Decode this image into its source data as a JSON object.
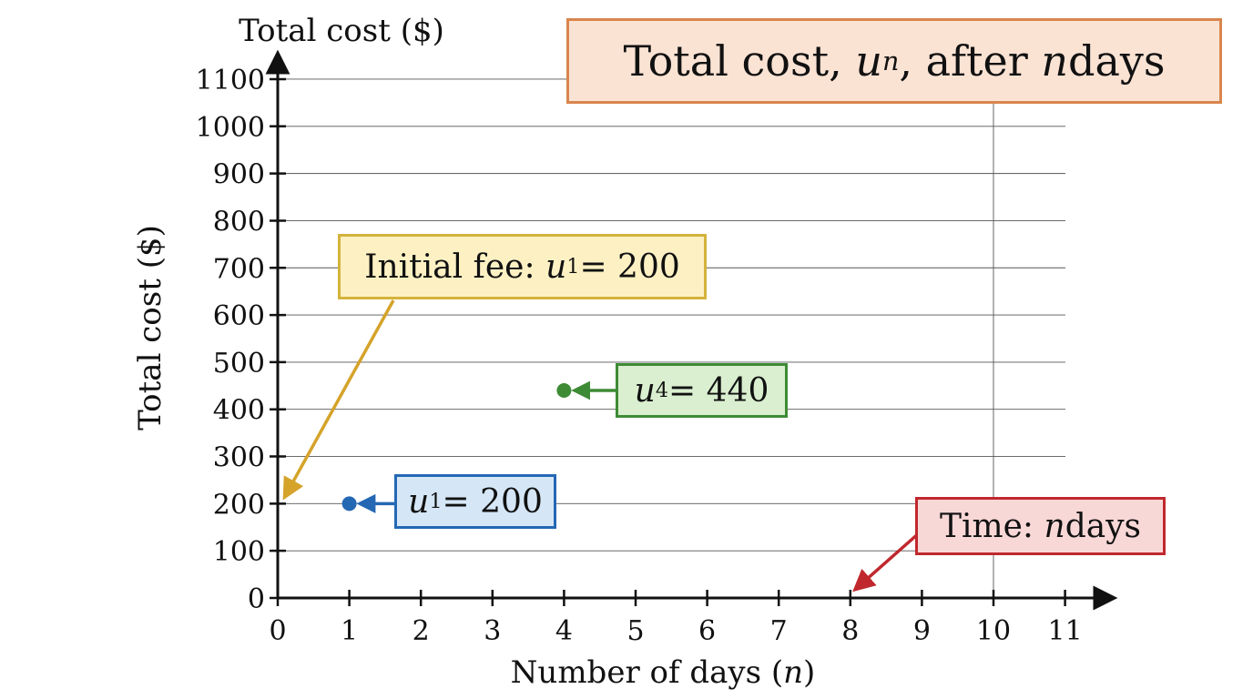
{
  "chart_data": {
    "type": "scatter",
    "title_prefix": "Total cost, ",
    "title_var": "u",
    "title_sub": "n",
    "title_mid": ", after ",
    "title_var2": "n",
    "title_suffix": " days",
    "ylabel": "Total cost ($)",
    "ylabel_top": "Total cost ($)",
    "xlabel_prefix": "Number of days (",
    "xlabel_var": "n",
    "xlabel_suffix": ")",
    "xlim": [
      0,
      11
    ],
    "ylim": [
      0,
      1100
    ],
    "x_ticks": [
      0,
      1,
      2,
      3,
      4,
      5,
      6,
      7,
      8,
      9,
      10,
      11
    ],
    "y_ticks": [
      0,
      100,
      200,
      300,
      400,
      500,
      600,
      700,
      800,
      900,
      1000,
      1100
    ],
    "grid": "horizontal",
    "points": [
      {
        "x": 1,
        "y": 200,
        "color": "#2468b4"
      },
      {
        "x": 4,
        "y": 440,
        "color": "#3e8b36"
      }
    ],
    "annotations": {
      "initial_fee": {
        "prefix": "Initial fee: ",
        "var": "u",
        "sub": "1",
        "rest": " = 200",
        "color": "#d5a32a",
        "points_to": {
          "x": 0,
          "y": 200
        }
      },
      "u4": {
        "var": "u",
        "sub": "4",
        "rest": " = 440",
        "color": "#3e8b36",
        "points_to": {
          "x": 4,
          "y": 440
        }
      },
      "u1": {
        "var": "u",
        "sub": "1",
        "rest": " = 200",
        "color": "#2468b4",
        "points_to": {
          "x": 1,
          "y": 200
        }
      },
      "time": {
        "prefix": "Time: ",
        "var": "n",
        "rest": " days",
        "color": "#c0282d",
        "points_to": {
          "x": 8,
          "y": 0
        }
      }
    }
  }
}
